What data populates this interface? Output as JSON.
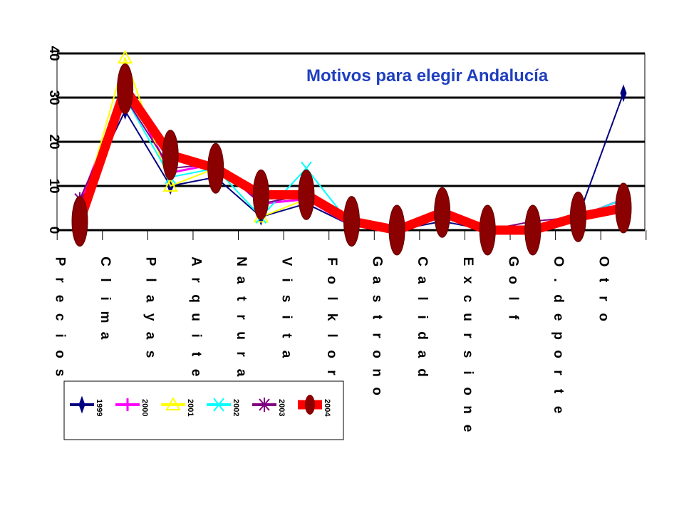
{
  "chart_data": {
    "type": "line",
    "title": "Motivos para elegir Andalucía",
    "categories": [
      "Precios",
      "Clima",
      "Playas",
      "Arquitec",
      "Natrural",
      "Visita",
      "Folklore",
      "Gastrono",
      "Calidad",
      "Excursione",
      "Golf",
      "O.deporte",
      "Otro"
    ],
    "yticks": [
      "0",
      "10",
      "20",
      "30",
      "40"
    ],
    "ylim": [
      0,
      40
    ],
    "grid": true,
    "legend_position": "bottom-left",
    "series": [
      {
        "name": "1999",
        "color": "#000080",
        "marker": "diamond",
        "values": [
          6,
          27,
          10,
          12,
          3,
          6,
          1,
          0,
          2,
          0,
          1,
          3,
          31
        ]
      },
      {
        "name": "2000",
        "color": "#FF00FF",
        "marker": "plus",
        "values": [
          6,
          33,
          13,
          15,
          6,
          7,
          1,
          0,
          3,
          0,
          1,
          3,
          7
        ]
      },
      {
        "name": "2001",
        "color": "#FFFF00",
        "marker": "triangle",
        "values": [
          3,
          39,
          10,
          14,
          3,
          7,
          1,
          0,
          3,
          0,
          1,
          3,
          7
        ]
      },
      {
        "name": "2002",
        "color": "#00FFFF",
        "marker": "x",
        "values": [
          5,
          30,
          12,
          14,
          3,
          14,
          1,
          0,
          5,
          0,
          1,
          3,
          7
        ]
      },
      {
        "name": "2003",
        "color": "#800080",
        "marker": "star",
        "values": [
          7,
          30,
          14,
          15,
          6,
          8,
          2,
          0,
          3,
          0,
          2,
          3,
          6
        ]
      },
      {
        "name": "2004",
        "color": "#FF0000",
        "marker": "ellipse",
        "values": [
          2,
          32,
          17,
          14,
          8,
          8,
          2,
          0,
          4,
          0,
          0,
          3,
          5
        ]
      }
    ]
  }
}
